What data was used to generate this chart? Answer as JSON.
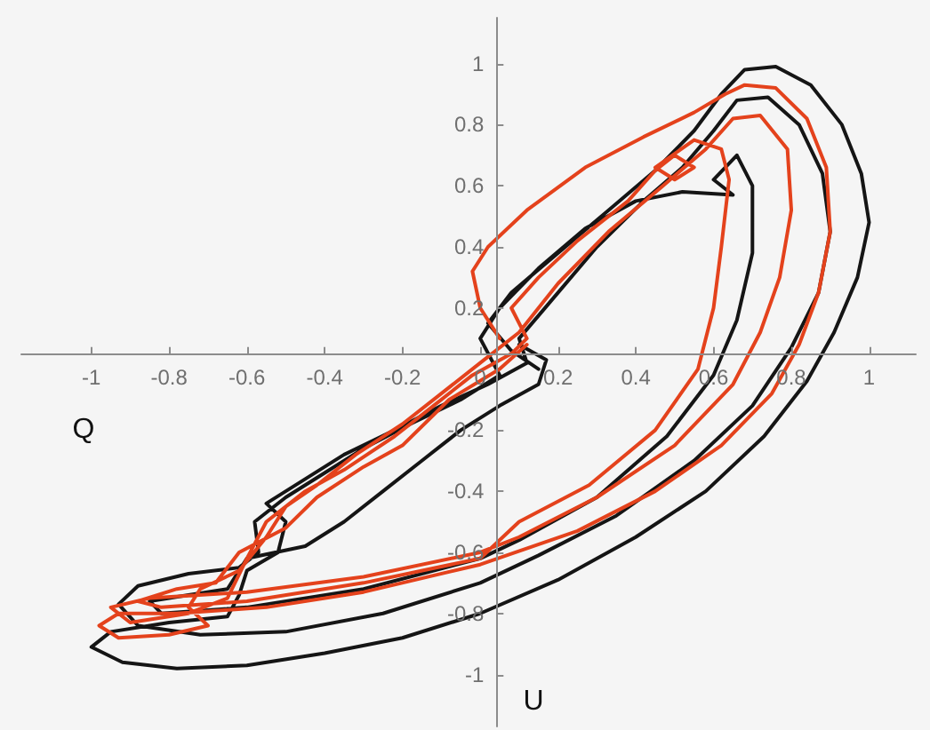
{
  "chart_data": {
    "type": "line",
    "xlabel": "Q",
    "ylabel": "U",
    "xlim": [
      -1.18,
      1.12
    ],
    "ylim": [
      -1.17,
      1.15
    ],
    "xticks": [
      -1,
      -0.8,
      -0.6,
      -0.4,
      -0.2,
      0,
      0.2,
      0.4,
      0.6,
      0.8,
      1
    ],
    "yticks": [
      -1,
      -0.8,
      -0.6,
      -0.4,
      -0.2,
      0.2,
      0.4,
      0.6,
      0.8,
      1
    ],
    "marker": "none",
    "line_style": "solid",
    "series": [
      {
        "color": "#151515",
        "x": [
          0.15,
          0.08,
          0.02,
          0.08,
          0.2,
          0.33,
          0.45,
          0.55,
          0.62,
          0.68,
          0.76,
          0.85,
          0.93,
          0.98,
          1.0,
          0.97,
          0.91,
          0.84,
          0.73,
          0.58,
          0.4,
          0.2,
          0.0,
          -0.2,
          -0.4,
          -0.6,
          -0.78,
          -0.92,
          -1.0,
          -0.95,
          -0.8,
          -0.65,
          -0.62,
          -0.6,
          -0.52,
          -0.5,
          -0.55,
          -0.45,
          -0.35,
          -0.22,
          -0.1,
          0.02,
          0.12,
          0.1,
          0.18,
          0.3,
          0.42,
          0.52,
          0.6,
          0.66,
          0.74,
          0.82,
          0.88,
          0.9,
          0.87,
          0.8,
          0.7,
          0.55,
          0.35,
          0.15,
          0.0,
          -0.25,
          -0.5,
          -0.72,
          -0.88,
          -0.93,
          -0.88,
          -0.75,
          -0.62,
          -0.57,
          -0.58,
          -0.5,
          -0.4,
          -0.3,
          -0.18,
          -0.05,
          0.05,
          0.0,
          0.05,
          0.15,
          0.27,
          0.4,
          0.52,
          0.65,
          0.6,
          0.66,
          0.7,
          0.7,
          0.66,
          0.6,
          0.48,
          0.3,
          0.1,
          0.0,
          -0.3,
          -0.6,
          -0.82,
          -0.85,
          -0.75,
          -0.65,
          -0.6,
          -0.45,
          -0.35,
          -0.25,
          -0.15,
          -0.05,
          0.05,
          0.15,
          0.17,
          0.1
        ],
        "values": [
          0.0,
          0.06,
          0.15,
          0.25,
          0.38,
          0.52,
          0.65,
          0.78,
          0.9,
          0.98,
          0.99,
          0.93,
          0.8,
          0.64,
          0.48,
          0.3,
          0.12,
          -0.04,
          -0.22,
          -0.4,
          -0.55,
          -0.69,
          -0.8,
          -0.88,
          -0.93,
          -0.97,
          -0.98,
          -0.96,
          -0.91,
          -0.86,
          -0.83,
          -0.81,
          -0.74,
          -0.66,
          -0.6,
          -0.5,
          -0.44,
          -0.36,
          -0.28,
          -0.2,
          -0.12,
          -0.05,
          0.02,
          0.1,
          0.22,
          0.4,
          0.55,
          0.66,
          0.78,
          0.88,
          0.89,
          0.8,
          0.64,
          0.45,
          0.25,
          0.07,
          -0.12,
          -0.3,
          -0.48,
          -0.61,
          -0.7,
          -0.8,
          -0.86,
          -0.87,
          -0.84,
          -0.77,
          -0.71,
          -0.67,
          -0.65,
          -0.6,
          -0.5,
          -0.42,
          -0.34,
          -0.26,
          -0.18,
          -0.1,
          -0.02,
          0.1,
          0.2,
          0.33,
          0.46,
          0.55,
          0.58,
          0.57,
          0.62,
          0.7,
          0.6,
          0.38,
          0.16,
          -0.02,
          -0.22,
          -0.42,
          -0.56,
          -0.62,
          -0.72,
          -0.78,
          -0.8,
          -0.76,
          -0.74,
          -0.72,
          -0.62,
          -0.58,
          -0.5,
          -0.4,
          -0.3,
          -0.2,
          -0.12,
          -0.05,
          0.03,
          0.08
        ]
      },
      {
        "color": "#e4421c",
        "x": [
          0.05,
          0.0,
          -0.02,
          0.02,
          0.12,
          0.27,
          0.42,
          0.55,
          0.63,
          0.68,
          0.76,
          0.84,
          0.89,
          0.9,
          0.87,
          0.82,
          0.75,
          0.62,
          0.45,
          0.25,
          0.0,
          -0.3,
          -0.55,
          -0.78,
          -0.93,
          -0.98,
          -0.93,
          -0.8,
          -0.7,
          -0.75,
          -0.72,
          -0.62,
          -0.55,
          -0.5,
          -0.42,
          -0.32,
          -0.2,
          -0.1,
          0.0,
          0.1,
          0.2,
          0.33,
          0.47,
          0.58,
          0.65,
          0.72,
          0.79,
          0.8,
          0.77,
          0.72,
          0.65,
          0.5,
          0.3,
          0.1,
          0.0,
          -0.3,
          -0.6,
          -0.85,
          -0.95,
          -0.9,
          -0.75,
          -0.65,
          -0.6,
          -0.55,
          -0.45,
          -0.35,
          -0.22,
          -0.12,
          -0.02,
          0.08,
          0.12,
          0.08,
          0.15,
          0.25,
          0.38,
          0.45,
          0.5,
          0.55,
          0.5,
          0.45,
          0.55,
          0.62,
          0.64,
          0.62,
          0.6,
          0.56,
          0.45,
          0.28,
          0.1,
          0.0,
          -0.3,
          -0.6,
          -0.82,
          -0.88,
          -0.78,
          -0.68,
          -0.62,
          -0.5,
          -0.42,
          -0.3,
          -0.2,
          -0.08,
          0.05,
          0.12
        ],
        "values": [
          0.1,
          0.2,
          0.32,
          0.4,
          0.52,
          0.66,
          0.76,
          0.84,
          0.9,
          0.93,
          0.92,
          0.82,
          0.66,
          0.45,
          0.25,
          0.08,
          -0.08,
          -0.25,
          -0.4,
          -0.53,
          -0.64,
          -0.73,
          -0.78,
          -0.8,
          -0.8,
          -0.84,
          -0.88,
          -0.87,
          -0.84,
          -0.78,
          -0.72,
          -0.66,
          -0.55,
          -0.45,
          -0.38,
          -0.28,
          -0.18,
          -0.08,
          0.02,
          0.12,
          0.28,
          0.45,
          0.6,
          0.72,
          0.82,
          0.83,
          0.72,
          0.52,
          0.3,
          0.12,
          -0.05,
          -0.25,
          -0.42,
          -0.55,
          -0.6,
          -0.68,
          -0.73,
          -0.75,
          -0.78,
          -0.83,
          -0.8,
          -0.75,
          -0.62,
          -0.5,
          -0.4,
          -0.33,
          -0.22,
          -0.12,
          -0.02,
          0.05,
          0.1,
          0.2,
          0.3,
          0.42,
          0.55,
          0.65,
          0.7,
          0.66,
          0.62,
          0.66,
          0.75,
          0.72,
          0.62,
          0.4,
          0.2,
          0.0,
          -0.2,
          -0.38,
          -0.5,
          -0.62,
          -0.7,
          -0.76,
          -0.78,
          -0.76,
          -0.72,
          -0.7,
          -0.6,
          -0.52,
          -0.42,
          -0.32,
          -0.25,
          -0.1,
          0.0,
          0.08
        ]
      }
    ]
  }
}
